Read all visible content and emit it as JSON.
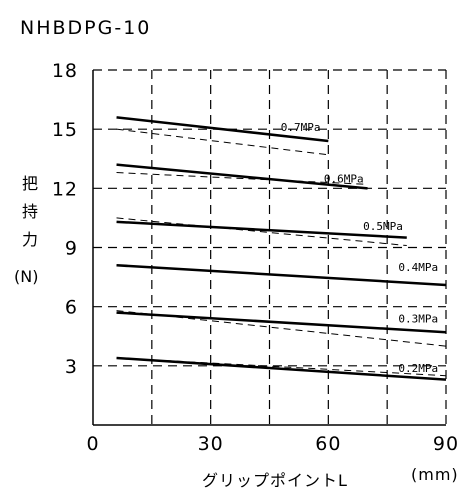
{
  "title": "NHBDPG-10",
  "chart_data": {
    "type": "line",
    "title": "NHBDPG-10",
    "xlabel": "グリップポイントL",
    "xunit": "(mm)",
    "ylabel_chars": [
      "把",
      "持",
      "力"
    ],
    "yunit": "(N)",
    "xlim": [
      0,
      90
    ],
    "ylim": [
      0,
      18
    ],
    "xticks": [
      "0",
      "30",
      "60",
      "90"
    ],
    "yticks": [
      "3",
      "6",
      "9",
      "12",
      "15",
      "18"
    ],
    "grid": true,
    "series": [
      {
        "name": "0.7MPa",
        "style": "solid",
        "x": [
          6,
          60
        ],
        "y": [
          15.6,
          14.4
        ]
      },
      {
        "name": "0.7MPa",
        "style": "dashed",
        "x": [
          6,
          60
        ],
        "y": [
          15.0,
          13.7
        ]
      },
      {
        "name": "0.6MPa",
        "style": "solid",
        "x": [
          6,
          70
        ],
        "y": [
          13.2,
          12.0
        ]
      },
      {
        "name": "0.6MPa",
        "style": "dashed",
        "x": [
          6,
          70
        ],
        "y": [
          12.8,
          12.2
        ]
      },
      {
        "name": "0.5MPa",
        "style": "solid",
        "x": [
          6,
          80
        ],
        "y": [
          10.3,
          9.5
        ]
      },
      {
        "name": "0.5MPa",
        "style": "dashed",
        "x": [
          6,
          80
        ],
        "y": [
          10.5,
          9.1
        ]
      },
      {
        "name": "0.4MPa",
        "style": "solid",
        "x": [
          6,
          90
        ],
        "y": [
          8.1,
          7.1
        ]
      },
      {
        "name": "0.4MPa",
        "style": "dashed",
        "x": [
          6,
          90
        ],
        "y": [
          8.1,
          7.1
        ]
      },
      {
        "name": "0.3MPa",
        "style": "solid",
        "x": [
          6,
          90
        ],
        "y": [
          5.7,
          4.7
        ]
      },
      {
        "name": "0.3MPa",
        "style": "dashed",
        "x": [
          6,
          90
        ],
        "y": [
          5.8,
          4.0
        ]
      },
      {
        "name": "0.2MPa",
        "style": "solid",
        "x": [
          6,
          90
        ],
        "y": [
          3.4,
          2.3
        ]
      },
      {
        "name": "0.2MPa",
        "style": "dashed",
        "x": [
          6,
          90
        ],
        "y": [
          3.4,
          2.5
        ]
      }
    ],
    "labels": [
      {
        "text": "0.7MPa",
        "x": 58,
        "y": 14.9
      },
      {
        "text": "0.6MPa",
        "x": 69,
        "y": 12.3
      },
      {
        "text": "0.5MPa",
        "x": 79,
        "y": 9.9
      },
      {
        "text": "0.4MPa",
        "x": 88,
        "y": 7.8
      },
      {
        "text": "0.3MPa",
        "x": 88,
        "y": 5.2
      },
      {
        "text": "0.2MPa",
        "x": 88,
        "y": 2.7
      }
    ]
  }
}
